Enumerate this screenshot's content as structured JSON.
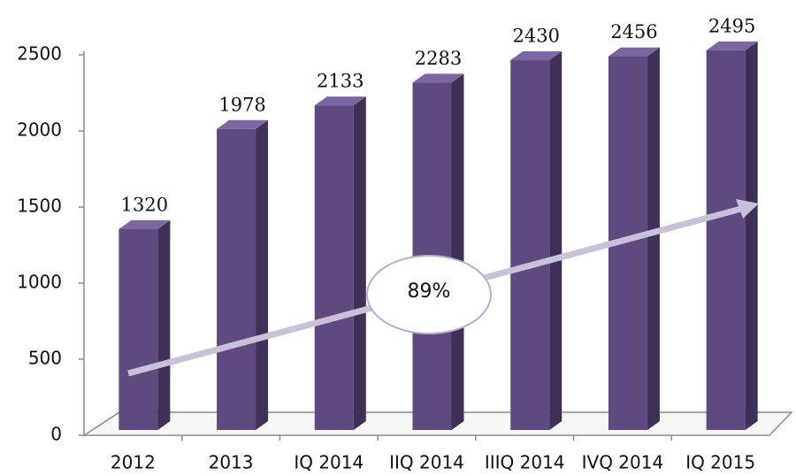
{
  "chart_data": {
    "type": "bar",
    "categories": [
      "2012",
      "2013",
      "IQ 2014",
      "IIQ 2014",
      "IIIQ 2014",
      "IVQ 2014",
      "IQ 2015"
    ],
    "values": [
      1320,
      1978,
      2133,
      2283,
      2430,
      2456,
      2495
    ],
    "color": "#5e4a7e",
    "ylim": [
      0,
      2500
    ],
    "yticks": [
      0,
      500,
      1000,
      1500,
      2000,
      2500
    ],
    "annotation": "89%"
  }
}
